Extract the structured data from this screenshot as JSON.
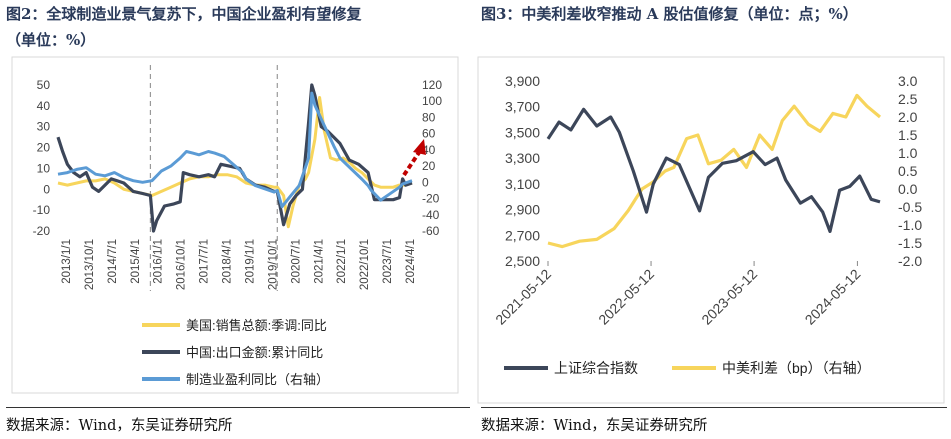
{
  "left": {
    "title_line1": "图2：全球制造业景气复苏下，中国企业盈利有望修复",
    "title_line2": "（单位：%）",
    "source": "数据来源：Wind，东吴证券研究所",
    "colors": {
      "us_sales": "#f7d55c",
      "china_export": "#3c4659",
      "profit": "#5b9bd5",
      "arrow": "#c00000",
      "guide": "#999999"
    },
    "chart_data": {
      "type": "line",
      "x_tick_labels": [
        "2013/1/1",
        "2013/10/1",
        "2014/7/1",
        "2015/4/1",
        "2016/1/1",
        "2016/10/1",
        "2017/7/1",
        "2018/4/1",
        "2019/1/1",
        "2019/10/1",
        "2020/7/1",
        "2021/4/1",
        "2022/1/1",
        "2022/10/1",
        "2023/7/1",
        "2024/4/1"
      ],
      "left_axis": {
        "ylim": [
          -20,
          50
        ],
        "ticks": [
          "50",
          "40",
          "30",
          "20",
          "10",
          "0",
          "-10",
          "-20"
        ]
      },
      "right_axis": {
        "ylim": [
          -60,
          120
        ],
        "ticks": [
          "120",
          "100",
          "80",
          "60",
          "40",
          "20",
          "0",
          "-20",
          "-40",
          "-60"
        ]
      },
      "x_range": [
        2013.0,
        2024.3
      ],
      "vertical_guides": [
        2015.95,
        2020.0
      ],
      "series": [
        {
          "name": "美国:销售总额:季调:同比",
          "axis": "left",
          "x": [
            2013.0,
            2013.3,
            2013.6,
            2013.9,
            2014.2,
            2014.5,
            2014.8,
            2015.1,
            2015.4,
            2015.7,
            2016.0,
            2016.3,
            2016.6,
            2016.9,
            2017.2,
            2017.5,
            2017.8,
            2018.1,
            2018.4,
            2018.7,
            2019.0,
            2019.3,
            2019.6,
            2019.9,
            2020.0,
            2020.2,
            2020.35,
            2020.5,
            2020.7,
            2020.9,
            2021.0,
            2021.2,
            2021.35,
            2021.5,
            2021.7,
            2021.9,
            2022.1,
            2022.3,
            2022.5,
            2022.7,
            2022.9,
            2023.1,
            2023.3,
            2023.5,
            2023.7,
            2023.9,
            2024.1,
            2024.3
          ],
          "y": [
            3,
            2,
            3,
            4,
            4,
            5,
            3,
            0,
            -1,
            -2,
            -3,
            -1,
            1,
            3,
            5,
            6,
            6,
            7,
            7,
            6,
            3,
            2,
            2,
            1,
            1,
            -3,
            -18,
            -8,
            2,
            5,
            8,
            24,
            44,
            28,
            15,
            14,
            15,
            13,
            10,
            8,
            5,
            2,
            1,
            1,
            1,
            2,
            2,
            3
          ]
        },
        {
          "name": "中国:出口金额:累计同比",
          "axis": "left",
          "x": [
            2013.0,
            2013.15,
            2013.3,
            2013.5,
            2013.7,
            2013.9,
            2014.1,
            2014.3,
            2014.5,
            2014.7,
            2014.9,
            2015.1,
            2015.4,
            2015.7,
            2015.95,
            2016.05,
            2016.15,
            2016.4,
            2016.7,
            2016.9,
            2017.0,
            2017.2,
            2017.5,
            2017.8,
            2018.0,
            2018.2,
            2018.5,
            2018.8,
            2019.0,
            2019.3,
            2019.6,
            2019.9,
            2020.0,
            2020.2,
            2020.4,
            2020.6,
            2020.8,
            2021.0,
            2021.1,
            2021.2,
            2021.4,
            2021.6,
            2021.8,
            2022.0,
            2022.3,
            2022.6,
            2022.9,
            2023.1,
            2023.4,
            2023.7,
            2023.9,
            2024.0,
            2024.1,
            2024.3
          ],
          "y": [
            25,
            18,
            12,
            8,
            6,
            8,
            1,
            -1,
            2,
            5,
            4,
            3,
            -1,
            -2,
            -3,
            -20,
            -15,
            -8,
            -7,
            -6,
            8,
            7,
            6,
            7,
            6,
            12,
            11,
            10,
            5,
            2,
            1,
            -1,
            -1,
            -17,
            -7,
            -3,
            0,
            32,
            50,
            45,
            30,
            28,
            25,
            22,
            14,
            12,
            8,
            -5,
            -5,
            -5,
            -4,
            5,
            2,
            3
          ]
        },
        {
          "name": "制造业盈利同比（右轴）",
          "axis": "right",
          "x": [
            2013.0,
            2013.3,
            2013.6,
            2013.9,
            2014.2,
            2014.5,
            2014.8,
            2015.1,
            2015.4,
            2015.7,
            2016.0,
            2016.3,
            2016.6,
            2016.9,
            2017.1,
            2017.3,
            2017.5,
            2017.8,
            2018.0,
            2018.3,
            2018.6,
            2018.9,
            2019.0,
            2019.3,
            2019.6,
            2019.9,
            2020.0,
            2020.15,
            2020.4,
            2020.7,
            2021.0,
            2021.1,
            2021.2,
            2021.5,
            2021.8,
            2022.0,
            2022.4,
            2022.7,
            2022.9,
            2023.0,
            2023.3,
            2023.6,
            2023.9,
            2024.0,
            2024.3
          ],
          "y": [
            10,
            12,
            16,
            18,
            10,
            8,
            12,
            6,
            2,
            0,
            2,
            14,
            20,
            30,
            38,
            36,
            34,
            38,
            36,
            32,
            22,
            12,
            4,
            -4,
            -8,
            -12,
            -10,
            -30,
            -18,
            -4,
            30,
            110,
            95,
            70,
            45,
            30,
            15,
            4,
            -4,
            -10,
            -22,
            -14,
            -6,
            -2,
            2
          ]
        }
      ]
    }
  },
  "right": {
    "title": "图3：中美利差收窄推动 A 股估值修复（单位：点；%）",
    "source": "数据来源：Wind，东吴证券研究所",
    "colors": {
      "sh_index": "#3c4659",
      "spread": "#f7d55c"
    },
    "chart_data": {
      "type": "line",
      "x_tick_labels": [
        "2021-05-12",
        "2022-05-12",
        "2023-05-12",
        "2024-05-12"
      ],
      "x_range": [
        "2021-05-12",
        "2024-07-31"
      ],
      "left_axis": {
        "ylim": [
          2500,
          3900
        ],
        "ticks": [
          "3,900",
          "3,700",
          "3,500",
          "3,300",
          "3,100",
          "2,900",
          "2,700",
          "2,500"
        ]
      },
      "right_axis": {
        "ylim": [
          -2.0,
          3.0
        ],
        "ticks": [
          "3.0",
          "2.5",
          "2.0",
          "1.5",
          "1.0",
          "0.5",
          "0.0",
          "-0.5",
          "-1.0",
          "-1.5",
          "-2.0"
        ]
      },
      "series": [
        {
          "name": "上证综合指数",
          "axis": "left",
          "x": [
            "2021-05-12",
            "2021-06-20",
            "2021-08-01",
            "2021-09-15",
            "2021-11-01",
            "2021-12-20",
            "2022-01-20",
            "2022-03-10",
            "2022-04-26",
            "2022-05-20",
            "2022-07-05",
            "2022-08-20",
            "2022-10-31",
            "2022-12-01",
            "2023-01-20",
            "2023-03-10",
            "2023-05-09",
            "2023-06-20",
            "2023-08-01",
            "2023-09-01",
            "2023-10-23",
            "2023-12-01",
            "2024-01-10",
            "2024-02-05",
            "2024-03-10",
            "2024-04-15",
            "2024-05-20",
            "2024-06-30",
            "2024-07-31"
          ],
          "y": [
            3450,
            3580,
            3520,
            3680,
            3550,
            3620,
            3500,
            3200,
            2880,
            3100,
            3300,
            3250,
            2890,
            3150,
            3260,
            3280,
            3350,
            3250,
            3300,
            3130,
            2950,
            3000,
            2880,
            2730,
            3050,
            3080,
            3160,
            2980,
            2960
          ]
        },
        {
          "name": "中美利差（bp）（右轴）",
          "axis": "right",
          "x": [
            "2021-05-12",
            "2021-07-01",
            "2021-09-01",
            "2021-11-01",
            "2022-01-01",
            "2022-02-20",
            "2022-04-10",
            "2022-05-20",
            "2022-07-01",
            "2022-08-01",
            "2022-09-15",
            "2022-10-25",
            "2022-12-01",
            "2023-01-15",
            "2023-03-01",
            "2023-04-15",
            "2023-06-01",
            "2023-07-15",
            "2023-08-20",
            "2023-10-01",
            "2023-11-20",
            "2024-01-01",
            "2024-02-15",
            "2024-04-01",
            "2024-05-10",
            "2024-06-15",
            "2024-07-31"
          ],
          "y": [
            -1.5,
            -1.6,
            -1.45,
            -1.4,
            -1.1,
            -0.6,
            0.0,
            0.2,
            0.5,
            0.6,
            1.4,
            1.5,
            0.7,
            0.8,
            1.1,
            0.6,
            1.5,
            1.1,
            1.9,
            2.3,
            1.8,
            1.6,
            2.1,
            2.0,
            2.6,
            2.3,
            2.0
          ]
        }
      ]
    }
  }
}
